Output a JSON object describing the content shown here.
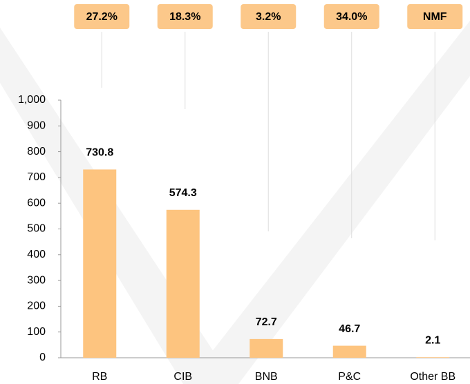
{
  "chart_data": {
    "type": "bar",
    "categories": [
      "RB",
      "CIB",
      "BNB",
      "P&C",
      "Other BB"
    ],
    "values": [
      730.8,
      574.3,
      72.7,
      46.7,
      2.1
    ],
    "color": "#fdc47f",
    "annotations": [
      "27.2%",
      "18.3%",
      "3.2%",
      "34.0%",
      "NMF"
    ],
    "ylim": [
      0,
      1000
    ],
    "yticks": [
      0,
      100,
      200,
      300,
      400,
      500,
      600,
      700,
      800,
      900,
      {
        "value": 1000,
        "label": "1,000"
      }
    ],
    "grid": false
  }
}
